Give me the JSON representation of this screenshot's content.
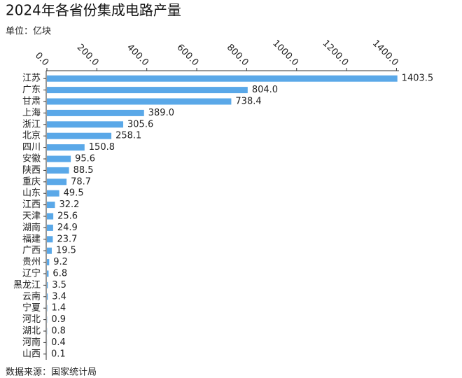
{
  "chart_data": {
    "type": "bar",
    "orientation": "horizontal",
    "title": "2024年各省份集成电路产量",
    "subtitle": "单位：亿块",
    "source": "数据来源：国家统计局",
    "categories": [
      "江苏",
      "广东",
      "甘肃",
      "上海",
      "浙江",
      "北京",
      "四川",
      "安徽",
      "陕西",
      "重庆",
      "山东",
      "江西",
      "天津",
      "湖南",
      "福建",
      "广西",
      "贵州",
      "辽宁",
      "黑龙江",
      "云南",
      "宁夏",
      "河北",
      "湖北",
      "河南",
      "山西"
    ],
    "values": [
      1403.5,
      804.0,
      738.4,
      389.0,
      305.6,
      258.1,
      150.8,
      95.6,
      88.5,
      78.7,
      49.5,
      32.2,
      25.6,
      24.9,
      23.7,
      19.5,
      9.2,
      6.8,
      3.5,
      3.4,
      1.4,
      0.9,
      0.8,
      0.4,
      0.1
    ],
    "value_labels": [
      "1403.5",
      "804.0",
      "738.4",
      "389.0",
      "305.6",
      "258.1",
      "150.8",
      "95.6",
      "88.5",
      "78.7",
      "49.5",
      "32.2",
      "25.6",
      "24.9",
      "23.7",
      "19.5",
      "9.2",
      "6.8",
      "3.5",
      "3.4",
      "1.4",
      "0.9",
      "0.8",
      "0.4",
      "0.1"
    ],
    "color": "#5aa8e8",
    "xlim": [
      0,
      1410
    ],
    "xticks": [
      {
        "value": 0,
        "label": "0.0"
      },
      {
        "value": 200,
        "label": "200.0"
      },
      {
        "value": 400,
        "label": "400.0"
      },
      {
        "value": 600,
        "label": "600.0"
      },
      {
        "value": 800,
        "label": "800.0"
      },
      {
        "value": 1000,
        "label": "1000.0"
      },
      {
        "value": 1200,
        "label": "1200.0"
      },
      {
        "value": 1400,
        "label": "1400.0"
      }
    ],
    "grid": false
  }
}
